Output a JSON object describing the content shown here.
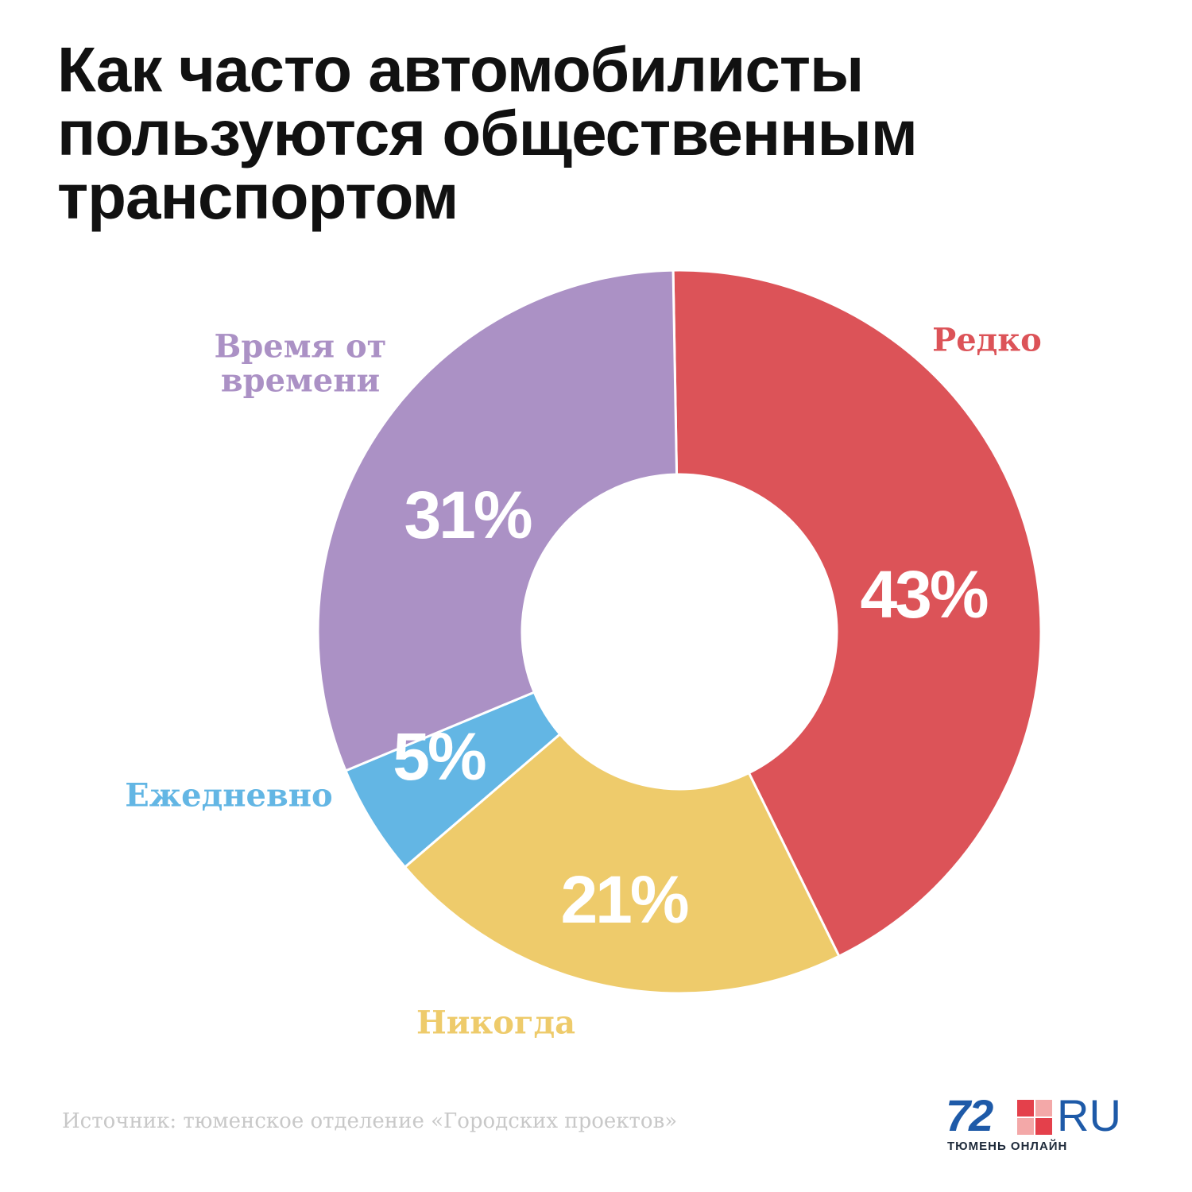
{
  "title_lines": [
    "Как часто автомобилисты",
    "пользуются общественным",
    "транспортом"
  ],
  "chart_data": {
    "type": "pie",
    "slices": [
      {
        "category": "Редко",
        "value": 43,
        "label": "43%",
        "color": "#dc5358"
      },
      {
        "category": "Никогда",
        "value": 21,
        "label": "21%",
        "color": "#eecb6b"
      },
      {
        "category": "Ежедневно",
        "value": 5,
        "label": "5%",
        "color": "#63b6e4"
      },
      {
        "category": "Время от времени",
        "value": 31,
        "label": "31%",
        "color": "#ab91c5"
      }
    ],
    "unit": "%",
    "donut": true
  },
  "source": "Источник: тюменское отделение «Городских проектов»",
  "logo": {
    "number": "72",
    "suffix": "RU",
    "tagline": "ТЮМЕНЬ ОНЛАЙН",
    "brand_color": "#1e5aa8"
  }
}
